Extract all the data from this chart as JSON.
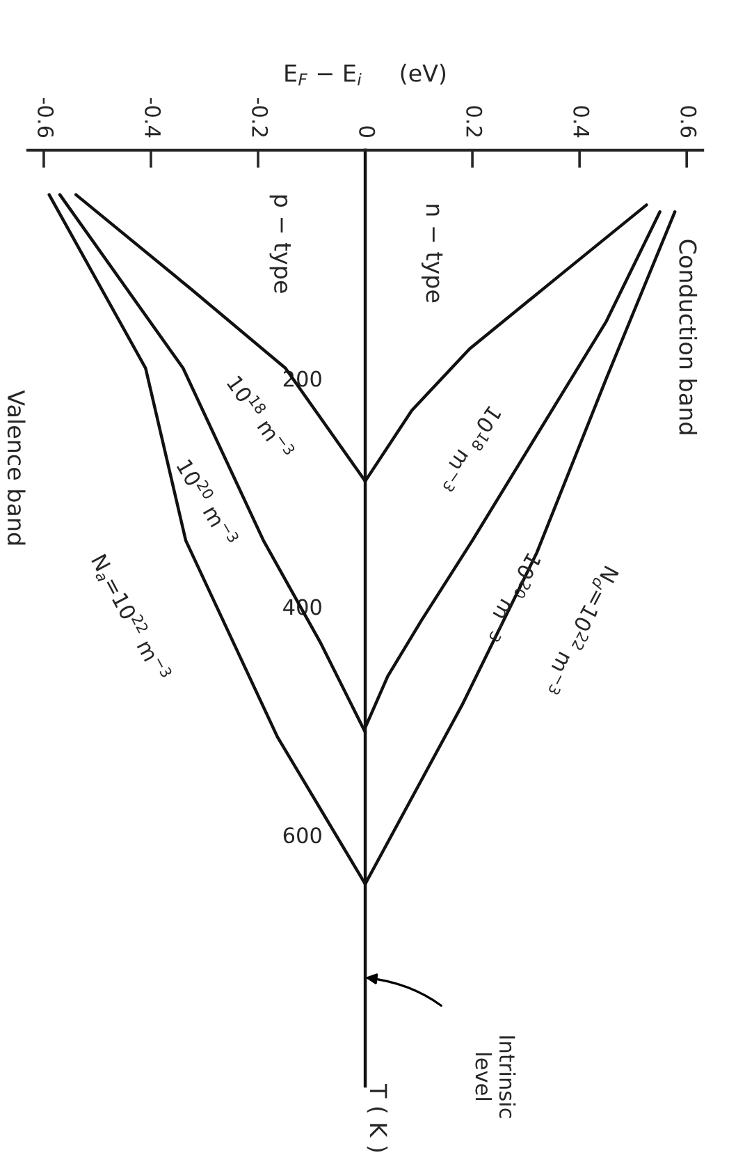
{
  "chart_data": {
    "type": "line",
    "xlabel": "E$_{F}$ − E$_{i}$     (eV)",
    "ylabel": "T ( K )",
    "xlim": [
      -0.63,
      0.63
    ],
    "ylim": [
      820,
      0
    ],
    "xticks": [
      -0.6,
      -0.4,
      -0.2,
      0,
      0.2,
      0.4,
      0.6
    ],
    "yticks": [
      200,
      400,
      600
    ],
    "grid": false,
    "legend": false,
    "series": [
      {
        "color": "#111111",
        "x": [
          0.525,
          0.365,
          0.195,
          0.087,
          0
        ],
        "values": [
          48,
          109,
          174,
          228,
          290
        ]
      },
      {
        "color": "#111111",
        "x": [
          0.55,
          0.45,
          0.2,
          0.105,
          0.042,
          0
        ],
        "values": [
          54,
          150,
          342,
          412,
          461,
          506
        ]
      },
      {
        "color": "#111111",
        "x": [
          0.578,
          0.45,
          0.32,
          0.181,
          0
        ],
        "values": [
          54,
          200,
          353,
          486,
          643
        ]
      },
      {
        "color": "#111111",
        "x": [
          -0.54,
          -0.327,
          -0.149,
          0
        ],
        "values": [
          39,
          121,
          191,
          290
        ]
      },
      {
        "color": "#111111",
        "x": [
          -0.57,
          -0.34,
          -0.19,
          -0.083,
          0
        ],
        "values": [
          39,
          191,
          342,
          432,
          510
        ]
      },
      {
        "color": "#111111",
        "x": [
          -0.59,
          -0.41,
          -0.335,
          -0.164,
          0
        ],
        "values": [
          39,
          191,
          342,
          514,
          643
        ]
      }
    ],
    "annotations": [
      "n − type",
      "p − type",
      "Conduction band",
      "Valence band",
      "10$^{18}$ m$^{−3}$",
      "10$^{20}$ m$^{−3}$",
      "N$_{d}$=10$^{22}$ m$^{−3}$",
      "10$^{18}$ m$^{−3}$",
      "10$^{20}$ m$^{−3}$",
      "N$_{a}$=10$^{22}$ m$^{−3}$",
      "Intrinsic\nlevel"
    ]
  }
}
